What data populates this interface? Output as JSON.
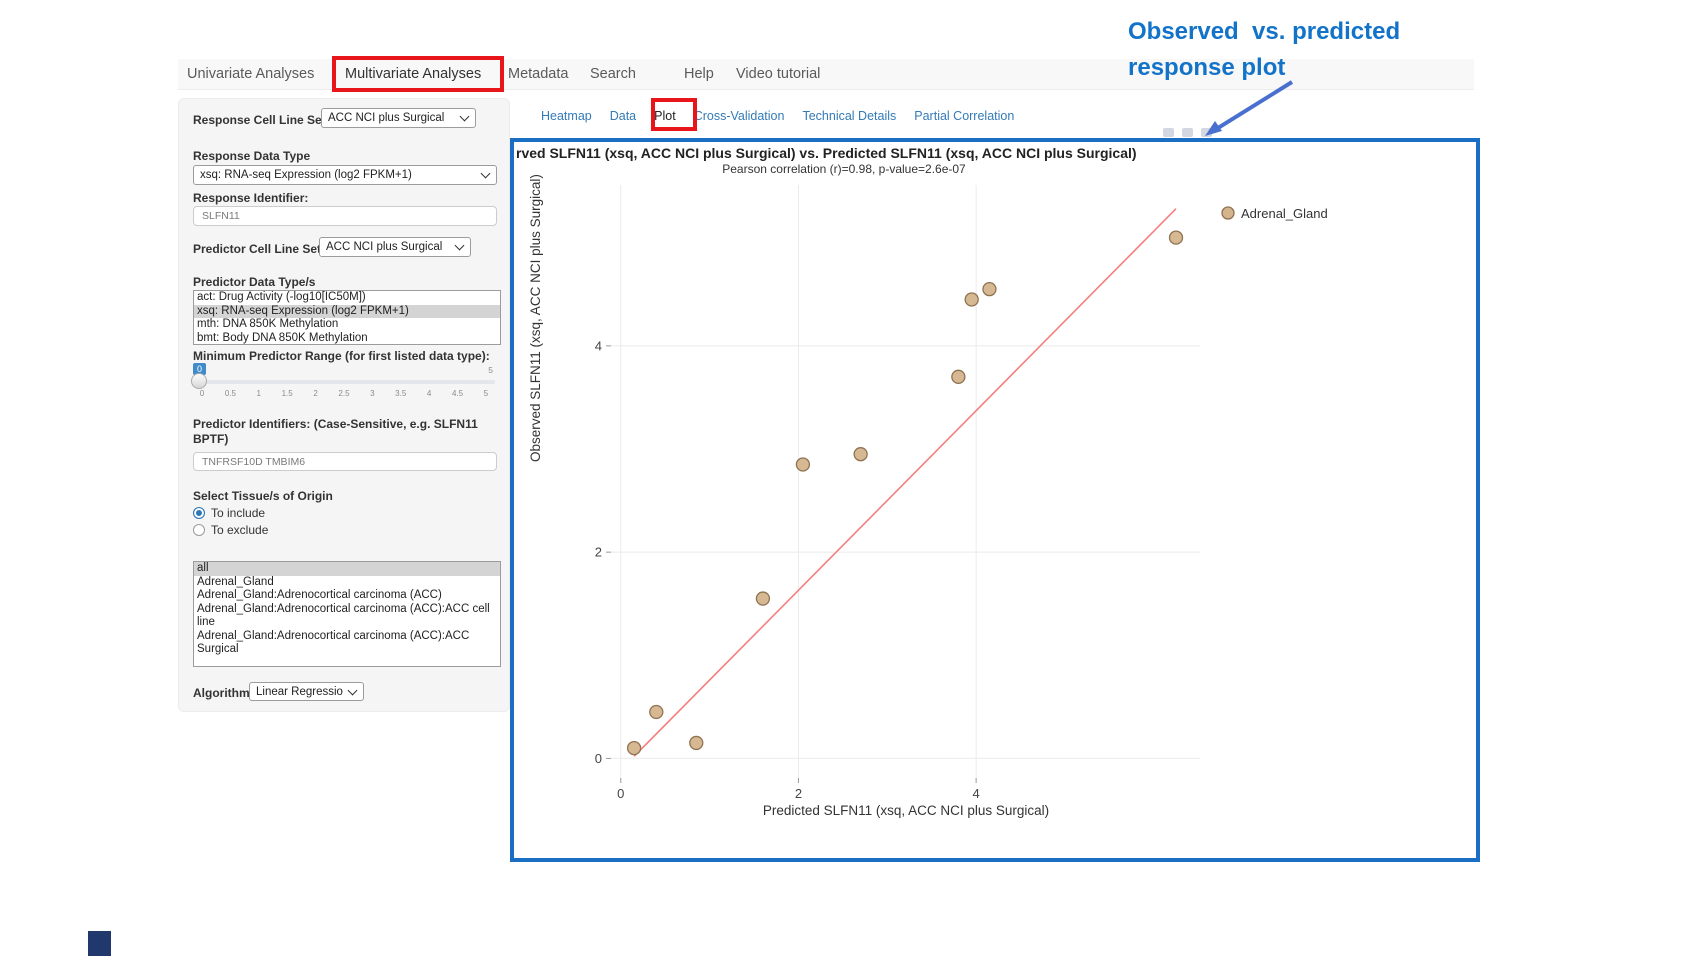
{
  "nav": {
    "items": [
      "Univariate Analyses",
      "Multivariate Analyses",
      "Metadata",
      "Search",
      "Help",
      "Video tutorial"
    ],
    "active": "Multivariate Analyses"
  },
  "tabs": {
    "items": [
      "Heatmap",
      "Data",
      "Plot",
      "Cross-Validation",
      "Technical Details",
      "Partial Correlation"
    ],
    "active": "Plot"
  },
  "sidebar": {
    "response_cell_line_set": {
      "label": "Response Cell Line Set",
      "value": "ACC NCI plus Surgical"
    },
    "response_data_type": {
      "label": "Response Data Type",
      "value": "xsq: RNA-seq Expression (log2 FPKM+1)"
    },
    "response_identifier": {
      "label": "Response Identifier:",
      "value": "SLFN11"
    },
    "predictor_cell_line_set": {
      "label": "Predictor Cell Line Set",
      "value": "ACC NCI plus Surgical"
    },
    "predictor_data_types": {
      "label": "Predictor Data Type/s",
      "options": [
        "act: Drug Activity (-log10[IC50M])",
        "xsq: RNA-seq Expression (log2 FPKM+1)",
        "mth: DNA 850K Methylation",
        "bmt: Body DNA 850K Methylation"
      ],
      "selected": "xsq: RNA-seq Expression (log2 FPKM+1)"
    },
    "min_predictor_range": {
      "label": "Minimum Predictor Range (for first listed data type):",
      "value": "0",
      "max_label": "5",
      "ticks": [
        "0",
        "0.5",
        "1",
        "1.5",
        "2",
        "2.5",
        "3",
        "3.5",
        "4",
        "4.5",
        "5"
      ]
    },
    "predictor_identifiers": {
      "label": "Predictor Identifiers: (Case-Sensitive, e.g. SLFN11 BPTF)",
      "value": "TNFRSF10D TMBIM6"
    },
    "tissue_origin": {
      "label": "Select Tissue/s of Origin",
      "options": [
        {
          "label": "To include",
          "selected": true
        },
        {
          "label": "To exclude",
          "selected": false
        }
      ]
    },
    "tissue_list": {
      "options": [
        "all",
        "Adrenal_Gland",
        "Adrenal_Gland:Adrenocortical carcinoma (ACC)",
        "Adrenal_Gland:Adrenocortical carcinoma (ACC):ACC cell line",
        "Adrenal_Gland:Adrenocortical carcinoma (ACC):ACC Surgical"
      ],
      "selected": "all"
    },
    "algorithm": {
      "label": "Algorithm",
      "value": "Linear Regression"
    }
  },
  "annotation": {
    "line1": "Observed  vs. predicted",
    "line2": "response plot"
  },
  "chart_data": {
    "type": "scatter",
    "title": "rved SLFN11 (xsq, ACC NCI plus Surgical) vs. Predicted SLFN11 (xsq, ACC NCI plus Surgical)",
    "subtitle": "Pearson correlation (r)=0.98, p-value=2.6e-07",
    "xlabel": "Predicted SLFN11 (xsq, ACC NCI plus Surgical)",
    "ylabel": "Observed SLFN11 (xsq, ACC NCI plus Surgical)",
    "legend": [
      {
        "label": "Adrenal_Gland"
      }
    ],
    "legend_position": "right-top",
    "grid": true,
    "x_ticks": [
      0,
      2,
      4
    ],
    "y_ticks": [
      0,
      2,
      4
    ],
    "xlim": [
      -0.11,
      6.52
    ],
    "ylim": [
      -0.19,
      5.56
    ],
    "series": [
      {
        "name": "Adrenal_Gland",
        "points": [
          [
            0.15,
            0.1
          ],
          [
            0.4,
            0.45
          ],
          [
            0.85,
            0.15
          ],
          [
            1.6,
            1.55
          ],
          [
            2.05,
            2.85
          ],
          [
            2.7,
            2.95
          ],
          [
            3.8,
            3.7
          ],
          [
            3.95,
            4.45
          ],
          [
            4.15,
            4.55
          ],
          [
            6.25,
            5.05
          ]
        ]
      }
    ],
    "trend_line": {
      "x": [
        0.15,
        6.25
      ],
      "y": [
        0.02,
        5.33
      ]
    },
    "pearson_r": 0.98,
    "p_value": "2.6e-07"
  },
  "colors": {
    "point_fill": "#d4b48d",
    "point_stroke": "#8f7250",
    "trend": "#f57e7e",
    "grid": "#ebebeb",
    "tick_text": "#444444",
    "panel_border": "#1a6fc4",
    "annotation_blue": "#1273c8",
    "arrow_blue": "#4a70cf",
    "highlight_red": "#e8151a",
    "tab_blue": "#337ab7",
    "slider_accent": "#428bca"
  }
}
